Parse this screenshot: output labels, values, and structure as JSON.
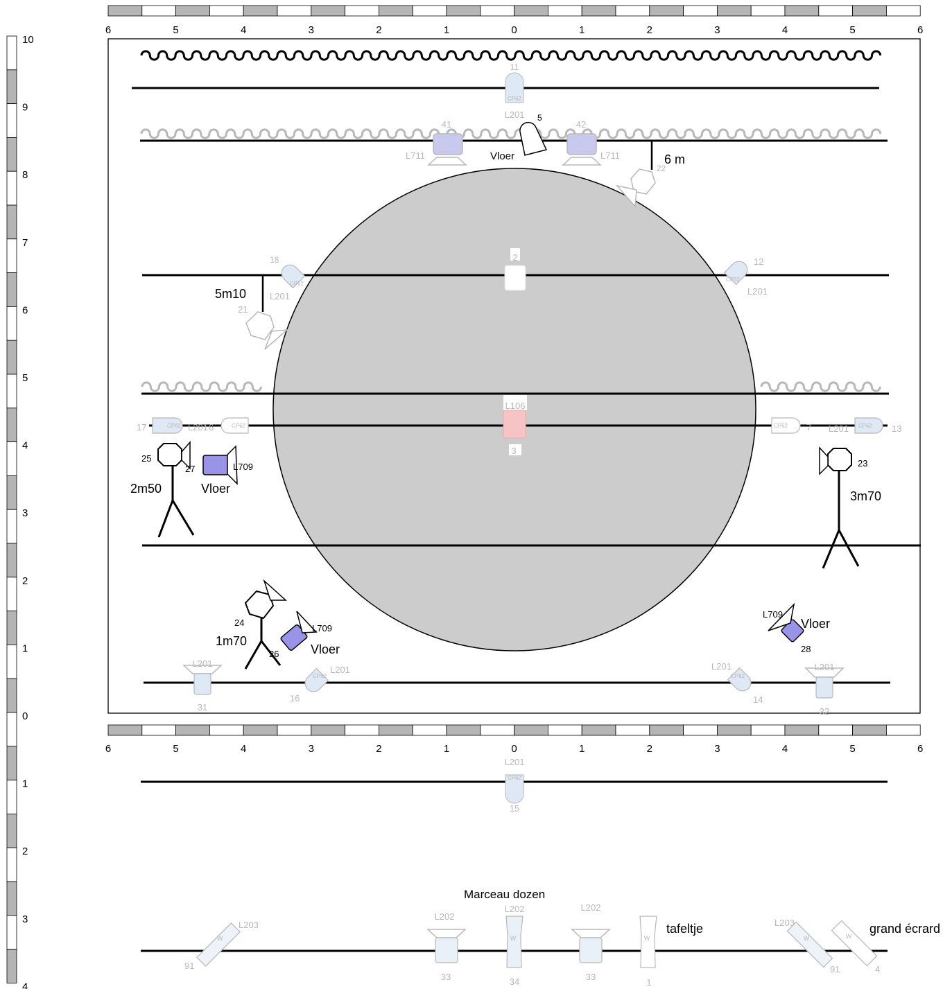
{
  "scale": {
    "top_labels": [
      "6",
      "5",
      "4",
      "3",
      "2",
      "1",
      "0",
      "1",
      "2",
      "3",
      "4",
      "5",
      "6"
    ],
    "bottom_labels": [
      "6",
      "5",
      "4",
      "3",
      "2",
      "1",
      "0",
      "1",
      "2",
      "3",
      "4",
      "5",
      "6"
    ],
    "left_labels": [
      "10",
      "9",
      "8",
      "7",
      "6",
      "5",
      "4",
      "3",
      "2",
      "1",
      "0",
      "1",
      "2",
      "3",
      "4"
    ]
  },
  "colors": {
    "stage_circle": "#cccccc",
    "light_blue": "#dfe9f5",
    "light_purple": "#c9c9ee",
    "purple": "#9a94e8",
    "pink": "#f6c4c4",
    "scale_gray": "#b5b5b5"
  },
  "labels": {
    "vloer_top": "Vloer",
    "six_m": "6 m",
    "five_m10": "5m10",
    "two_m50": "2m50",
    "vloer_left": "Vloer",
    "three_m70": "3m70",
    "one_m70": "1m70",
    "vloer_bottom_left": "Vloer",
    "vloer_bottom_right": "Vloer",
    "marceau": "Marceau dozen",
    "tafeltje": "tafeltje",
    "grand_ecrard": "grand écrard"
  },
  "fixtures": {
    "f11": {
      "num": "11",
      "filter": "CP62",
      "gel": "L201"
    },
    "f5": {
      "num": "5"
    },
    "f41": {
      "num": "41",
      "gel": "L711"
    },
    "f42": {
      "num": "42",
      "gel": "L711"
    },
    "f22": {
      "num": "22"
    },
    "f2": {
      "num": "2"
    },
    "f18": {
      "num": "18",
      "filter": "CP62",
      "gel": "L201"
    },
    "f12": {
      "num": "12",
      "filter": "CP62",
      "gel": "L201"
    },
    "f21": {
      "num": "21"
    },
    "f3": {
      "num": "3",
      "gel": "L106"
    },
    "f17": {
      "num": "17",
      "filter": "CP62",
      "gel": "L201"
    },
    "f6": {
      "num": "6",
      "filter": "CP62"
    },
    "f7": {
      "num": "7",
      "filter": "CP62"
    },
    "f13": {
      "num": "13",
      "filter": "CP62",
      "gel": "L201"
    },
    "f25": {
      "num": "25"
    },
    "f27": {
      "num": "27",
      "gel": "L709"
    },
    "f23": {
      "num": "23"
    },
    "f24": {
      "num": "24"
    },
    "f26": {
      "num": "26",
      "gel": "L709"
    },
    "f28": {
      "num": "28",
      "gel": "L709"
    },
    "f31": {
      "num": "31",
      "gel": "L201"
    },
    "f16": {
      "num": "16",
      "filter": "CP62",
      "gel": "L201"
    },
    "f14": {
      "num": "14",
      "filter": "CP62",
      "gel": "L201"
    },
    "f32": {
      "num": "32",
      "gel": "L201"
    },
    "f15": {
      "num": "15",
      "filter": "CP62",
      "gel": "L201"
    },
    "f91a": {
      "num": "91",
      "gel": "L203",
      "mark": "W"
    },
    "f33a": {
      "num": "33",
      "gel": "L202"
    },
    "f34": {
      "num": "34",
      "gel": "L202",
      "mark": "W"
    },
    "f33b": {
      "num": "33",
      "gel": "L202"
    },
    "f1": {
      "num": "1",
      "mark": "W"
    },
    "f91b": {
      "num": "91",
      "gel": "L203",
      "mark": "W"
    },
    "f4": {
      "num": "4",
      "mark": "W"
    }
  }
}
